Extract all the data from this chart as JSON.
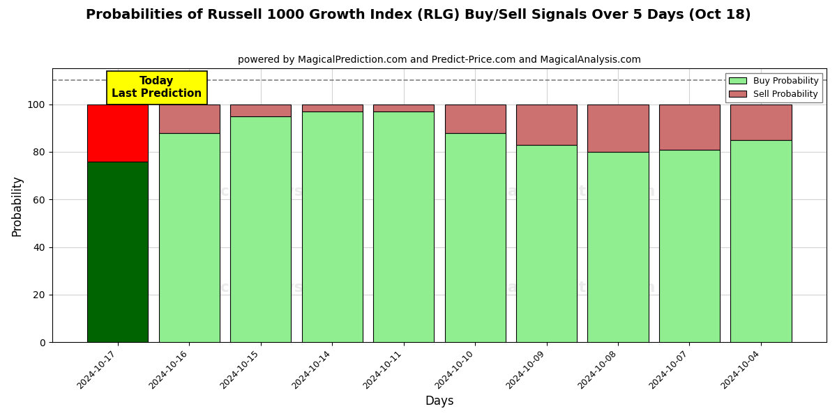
{
  "title": "Probabilities of Russell 1000 Growth Index (RLG) Buy/Sell Signals Over 5 Days (Oct 18)",
  "subtitle": "powered by MagicalPrediction.com and Predict-Price.com and MagicalAnalysis.com",
  "xlabel": "Days",
  "ylabel": "Probability",
  "categories": [
    "2024-10-17",
    "2024-10-16",
    "2024-10-15",
    "2024-10-14",
    "2024-10-11",
    "2024-10-10",
    "2024-10-09",
    "2024-10-08",
    "2024-10-07",
    "2024-10-04"
  ],
  "buy_values": [
    76,
    88,
    95,
    97,
    97,
    88,
    83,
    80,
    81,
    85
  ],
  "sell_values": [
    24,
    12,
    5,
    3,
    3,
    12,
    17,
    20,
    19,
    15
  ],
  "buy_color_today": "#006400",
  "sell_color_today": "#ff0000",
  "buy_color_pred": "#90EE90",
  "sell_color_pred": "#CD7070",
  "bar_edge_color": "black",
  "dashed_line_y": 110,
  "ylim": [
    0,
    115
  ],
  "yticks": [
    0,
    20,
    40,
    60,
    80,
    100
  ],
  "annotation_text": "Today\nLast Prediction",
  "annotation_bg": "#ffff00",
  "legend_buy_label": "Buy Probability",
  "legend_sell_label": "Sell Probability",
  "title_fontsize": 14,
  "subtitle_fontsize": 10,
  "label_fontsize": 12
}
